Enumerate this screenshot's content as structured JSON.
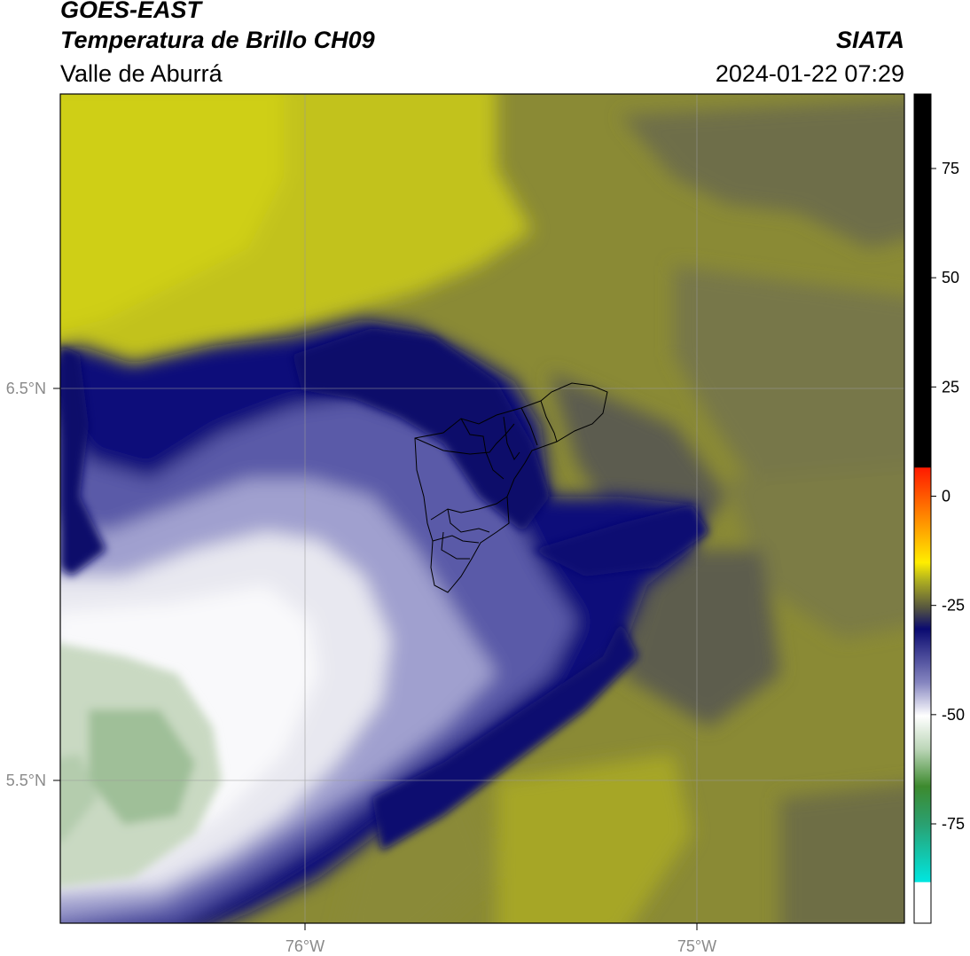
{
  "header": {
    "satellite": "GOES-EAST",
    "product": "Temperatura de Brillo CH09",
    "organization": "SIATA",
    "region": "Valle de Aburrá",
    "timestamp": "2024-01-22 07:29"
  },
  "map": {
    "lat_labels": [
      {
        "value": 6.5,
        "text": "6.5°N"
      },
      {
        "value": 5.5,
        "text": "5.5°N"
      }
    ],
    "lon_labels": [
      {
        "value": -76.0,
        "text": "76°W"
      },
      {
        "value": -75.0,
        "text": "75°W"
      }
    ],
    "gridline_color": "#9a9a9a",
    "palette": {
      "yellow_bright": "#cccc1a",
      "olive": "#8f8f33",
      "olive_dark": "#6f6f45",
      "navy": "#0d0d7a",
      "lavender": "#9a9acc",
      "white": "#f5f5f8",
      "green_light": "#c9dcc4"
    }
  },
  "colorbar": {
    "ticks": [
      {
        "value": 75,
        "text": "75"
      },
      {
        "value": 50,
        "text": "50"
      },
      {
        "value": 25,
        "text": "25"
      },
      {
        "value": 0,
        "text": "0"
      },
      {
        "value": -25,
        "text": "-25"
      },
      {
        "value": -50,
        "text": "-50"
      },
      {
        "value": -75,
        "text": "-75"
      }
    ],
    "range": [
      -95,
      92
    ]
  }
}
